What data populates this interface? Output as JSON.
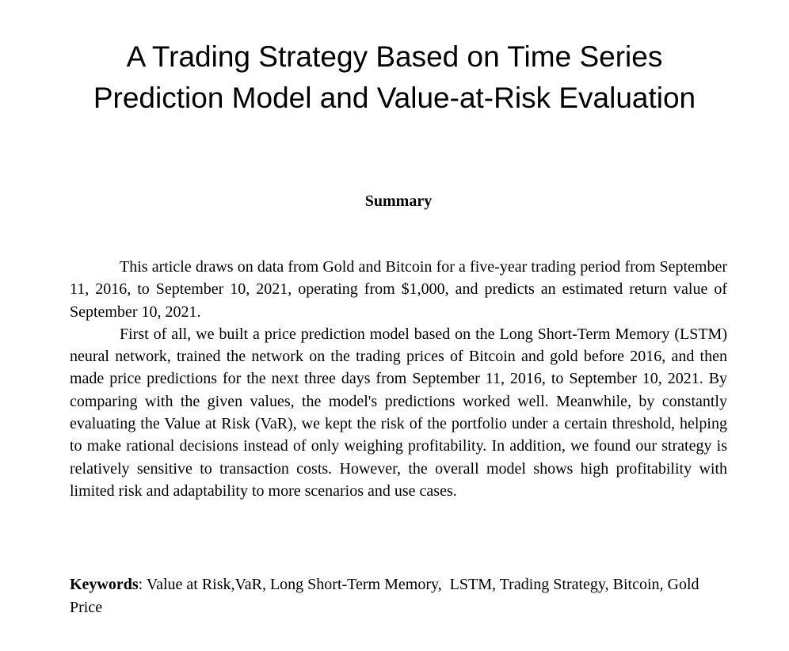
{
  "paper": {
    "title_lines": [
      "A Trading Strategy Based on Time Series",
      "Prediction Model and Value-at-Risk Evaluation"
    ],
    "summary_heading": "Summary",
    "abstract_paragraphs": [
      "This article draws on data from Gold and Bitcoin for a five-year trading period from September 11, 2016, to September 10, 2021, operating from $1,000, and predicts an estimated return value of September 10, 2021.",
      "First of all, we built a price prediction model based on the Long Short-Term Memory (LSTM) neural network, trained the network on the trading prices of Bitcoin and gold before 2016, and then made price predictions for the next three days from September 11, 2016, to September 10, 2021. By comparing with the given values, the model's predictions worked well. Meanwhile, by constantly evaluating the Value at Risk (VaR), we kept the risk of the portfolio under a certain threshold, helping to make rational decisions instead of only weighing profitability. In addition, we found our strategy is relatively sensitive to transaction costs. However, the overall model shows high profitability with limited risk and adaptability to more scenarios and use cases."
    ],
    "keywords": {
      "label": "Keywords",
      "separator": ":",
      "text": " Value at Risk,VaR, Long Short-Term Memory,  LSTM, Trading Strategy, Bitcoin, Gold Price"
    }
  }
}
